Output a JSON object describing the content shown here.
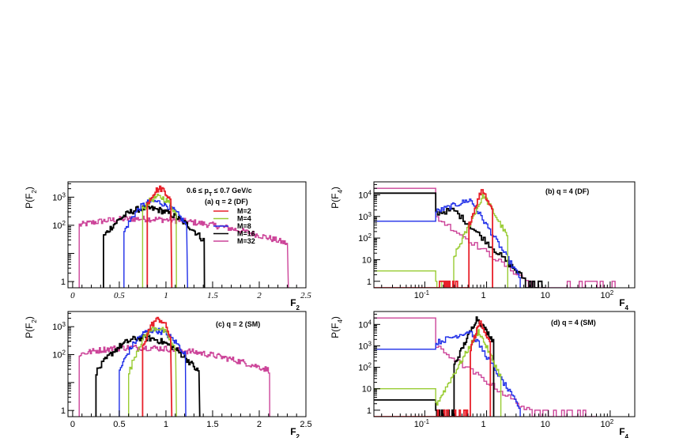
{
  "colors": {
    "M=2": "#e8202a",
    "M=4": "#99cc33",
    "M=8": "#1f2ee8",
    "M=16": "#000000",
    "M=32": "#cc4499"
  },
  "legend": {
    "header": "(a)  q = 2 (DF)",
    "entries": [
      "M=2",
      "M=4",
      "M=8",
      "M=16",
      "M=32"
    ]
  },
  "annotation": "0.6 ≤ pT ≤ 0.7 GeV/c",
  "annotation_parts": {
    "a": "0.6",
    "le1": "≤",
    "p": "p",
    "sub": "T",
    "le2": "≤",
    "b": "0.7 GeV/c"
  },
  "chart_data": [
    {
      "id": "a",
      "type": "line",
      "title": "(a)  q = 2 (DF)",
      "ylabel_main": "P(F",
      "ylabel_sub": "2",
      "ylabel_end": ")",
      "xlabel_main": "F",
      "xlabel_sub": "2",
      "xscale": "linear",
      "yscale": "log",
      "xlim": [
        -0.05,
        2.5
      ],
      "ylim": [
        0.6,
        3500
      ],
      "xticklabels": [
        "0",
        "0.5",
        "1",
        "1.5",
        "2",
        "2.5"
      ],
      "yticklabels": [
        {
          "base": "1",
          "exp": ""
        },
        {
          "base": "10",
          "exp": "2"
        },
        {
          "base": "10",
          "exp": "3"
        }
      ],
      "series": [
        {
          "name": "M=2",
          "peak": [
            0.94,
            2000
          ],
          "L": 0.09,
          "R": 0.07,
          "range": [
            0.8,
            1.05
          ]
        },
        {
          "name": "M=4",
          "peak": [
            0.92,
            1000
          ],
          "L": 0.12,
          "R": 0.11,
          "range": [
            0.75,
            1.1
          ]
        },
        {
          "name": "M=8",
          "peak": [
            0.86,
            700
          ],
          "L": 0.14,
          "R": 0.18,
          "range": [
            0.55,
            1.22
          ]
        },
        {
          "name": "M=16",
          "peak": [
            0.78,
            400
          ],
          "L": 0.21,
          "R": 0.27,
          "range": [
            0.33,
            1.4
          ]
        },
        {
          "name": "M=32",
          "peak": [
            0.68,
            170
          ],
          "L": 0.6,
          "R": 0.8,
          "range": [
            0.07,
            2.3
          ]
        }
      ]
    },
    {
      "id": "b",
      "type": "histogram",
      "title": "(b)  q = 4 (DF)",
      "ylabel_main": "P(F",
      "ylabel_sub": "4",
      "ylabel_end": ")",
      "xlabel_main": "F",
      "xlabel_sub": "4",
      "xscale": "log",
      "yscale": "log",
      "xlim": [
        0.015,
        250
      ],
      "ylim": [
        0.5,
        40000
      ],
      "xticklabels": [
        {
          "base": "10",
          "exp": "-1"
        },
        {
          "base": "1",
          "exp": ""
        },
        {
          "base": "10",
          "exp": ""
        },
        {
          "base": "10",
          "exp": "2"
        }
      ],
      "yticklabels": [
        {
          "base": "1",
          "exp": ""
        },
        {
          "base": "10",
          "exp": ""
        },
        {
          "base": "10",
          "exp": "2"
        },
        {
          "base": "10",
          "exp": "3"
        },
        {
          "base": "10",
          "exp": "4"
        }
      ],
      "series": [
        {
          "name": "M=2",
          "first": 0,
          "peak": [
            0.85,
            20000
          ],
          "slopeL": -8,
          "slopeR": -6,
          "range": [
            0.52,
            1.25
          ]
        },
        {
          "name": "M=4",
          "first": 3,
          "peak": [
            0.9,
            10000
          ],
          "slopeL": -6,
          "slopeR": -5,
          "range": [
            0.3,
            2.2
          ]
        },
        {
          "name": "M=8",
          "first": 600,
          "peak": [
            0.55,
            6000
          ],
          "slopeL": -1,
          "slopeR": -4.5,
          "range": [
            0.15,
            3.5
          ]
        },
        {
          "name": "M=16",
          "first": 12000,
          "peak": [
            0.3,
            2000
          ],
          "slopeL": -0.5,
          "slopeR": -2.8,
          "range": [
            0.15,
            9
          ]
        },
        {
          "name": "M=32",
          "first": 20000,
          "peak": [
            0.15,
            1000
          ],
          "slopeL": 0,
          "slopeR": -2.0,
          "range": [
            0.15,
            120
          ]
        }
      ]
    },
    {
      "id": "c",
      "type": "line",
      "title": "(c)  q = 2 (SM)",
      "ylabel_main": "P(F",
      "ylabel_sub": "2",
      "ylabel_end": ")",
      "xlabel_main": "F",
      "xlabel_sub": "2",
      "xscale": "linear",
      "yscale": "log",
      "xlim": [
        -0.05,
        2.5
      ],
      "ylim": [
        0.6,
        3500
      ],
      "xticklabels": [
        "0",
        "0.5",
        "1",
        "1.5",
        "2",
        "2.5"
      ],
      "yticklabels": [
        {
          "base": "1",
          "exp": ""
        },
        {
          "base": "10",
          "exp": "2"
        },
        {
          "base": "10",
          "exp": "3"
        }
      ],
      "series": [
        {
          "name": "M=2",
          "peak": [
            0.92,
            1800
          ],
          "L": 0.08,
          "R": 0.07,
          "range": [
            0.75,
            1.05
          ]
        },
        {
          "name": "M=4",
          "peak": [
            0.9,
            900
          ],
          "L": 0.11,
          "R": 0.1,
          "range": [
            0.6,
            1.1
          ]
        },
        {
          "name": "M=8",
          "peak": [
            0.86,
            750
          ],
          "L": 0.14,
          "R": 0.17,
          "range": [
            0.5,
            1.2
          ]
        },
        {
          "name": "M=16",
          "peak": [
            0.75,
            400
          ],
          "L": 0.21,
          "R": 0.25,
          "range": [
            0.25,
            1.35
          ]
        },
        {
          "name": "M=32",
          "peak": [
            0.65,
            180
          ],
          "L": 0.55,
          "R": 0.75,
          "range": [
            0.07,
            2.1
          ]
        }
      ]
    },
    {
      "id": "d",
      "type": "histogram",
      "title": "(d)  q = 4 (SM)",
      "ylabel_main": "P(F",
      "ylabel_sub": "4",
      "ylabel_end": ")",
      "xlabel_main": "F",
      "xlabel_sub": "4",
      "xscale": "log",
      "yscale": "log",
      "xlim": [
        0.015,
        250
      ],
      "ylim": [
        0.5,
        40000
      ],
      "xticklabels": [
        {
          "base": "10",
          "exp": "-1"
        },
        {
          "base": "1",
          "exp": ""
        },
        {
          "base": "10",
          "exp": ""
        },
        {
          "base": "10",
          "exp": "2"
        }
      ],
      "yticklabels": [
        {
          "base": "1",
          "exp": ""
        },
        {
          "base": "10",
          "exp": ""
        },
        {
          "base": "10",
          "exp": "2"
        },
        {
          "base": "10",
          "exp": "3"
        },
        {
          "base": "10",
          "exp": "4"
        }
      ],
      "series": [
        {
          "name": "M=2",
          "first": 0,
          "peak": [
            0.8,
            15000
          ],
          "slopeL": -8,
          "slopeR": -7,
          "range": [
            0.55,
            1.15
          ]
        },
        {
          "name": "M=4",
          "first": 10,
          "peak": [
            0.75,
            5000
          ],
          "slopeL": -5,
          "slopeR": -6,
          "range": [
            0.15,
            1.7
          ]
        },
        {
          "name": "M=8",
          "first": 700,
          "peak": [
            0.55,
            5000
          ],
          "slopeL": -1,
          "slopeR": -4.5,
          "range": [
            0.15,
            3.5
          ]
        },
        {
          "name": "M=16",
          "first": 3,
          "peak": [
            0.7,
            20000
          ],
          "slopeL": -6,
          "slopeR": -4,
          "range": [
            0.3,
            1.3
          ]
        },
        {
          "name": "M=32",
          "first": 20000,
          "peak": [
            0.15,
            1000
          ],
          "slopeL": 0,
          "slopeR": -2.0,
          "range": [
            0.15,
            60
          ]
        }
      ]
    }
  ]
}
